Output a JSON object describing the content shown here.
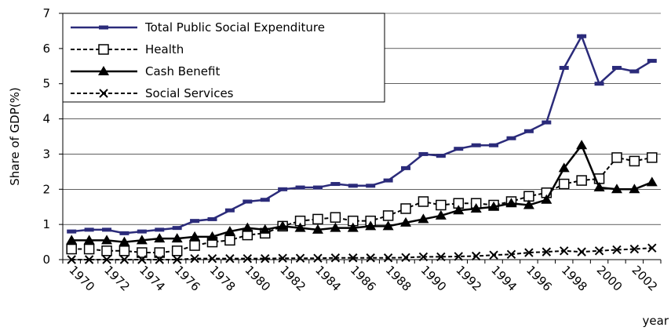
{
  "chart_data": {
    "type": "line",
    "ylabel": "Share of GDP(%)",
    "xlabel": "year",
    "categories": [
      "1970",
      null,
      "1972",
      null,
      "1974",
      null,
      "1976",
      null,
      "1978",
      null,
      "1980",
      null,
      "1982",
      null,
      "1984",
      null,
      "1986",
      null,
      "1988",
      null,
      "1990",
      null,
      "1992",
      null,
      "1994",
      null,
      "1996",
      null,
      "1998",
      null,
      "2000",
      null,
      "2002",
      null
    ],
    "ylim": [
      0,
      7
    ],
    "yticks": [
      0,
      1,
      2,
      3,
      4,
      5,
      6,
      7
    ],
    "grid": true,
    "legend": "upper left",
    "series": [
      {
        "name": "Total Public Social Expenditure",
        "color": "#2b2b7a",
        "dash": false,
        "marker": "dash",
        "values": [
          0.8,
          0.85,
          0.85,
          0.75,
          0.8,
          0.85,
          0.9,
          1.1,
          1.15,
          1.4,
          1.65,
          1.7,
          2.0,
          2.05,
          2.05,
          2.15,
          2.1,
          2.1,
          2.25,
          2.6,
          3.0,
          2.95,
          3.15,
          3.25,
          3.25,
          3.45,
          3.65,
          3.9,
          5.45,
          6.35,
          5.0,
          5.45,
          5.35,
          5.65
        ]
      },
      {
        "name": "Health",
        "color": "#000000",
        "dash": true,
        "marker": "square",
        "values": [
          0.3,
          0.3,
          0.25,
          0.25,
          0.2,
          0.2,
          0.25,
          0.4,
          0.5,
          0.55,
          0.7,
          0.75,
          0.95,
          1.1,
          1.15,
          1.2,
          1.1,
          1.1,
          1.25,
          1.45,
          1.65,
          1.55,
          1.6,
          1.6,
          1.55,
          1.65,
          1.8,
          1.9,
          2.15,
          2.25,
          2.3,
          2.9,
          2.8,
          2.9
        ]
      },
      {
        "name": "Cash Benefit",
        "color": "#000000",
        "dash": false,
        "marker": "triangle",
        "values": [
          0.55,
          0.55,
          0.55,
          0.5,
          0.55,
          0.6,
          0.6,
          0.65,
          0.65,
          0.8,
          0.9,
          0.85,
          0.95,
          0.9,
          0.85,
          0.9,
          0.9,
          0.95,
          0.95,
          1.05,
          1.15,
          1.25,
          1.4,
          1.45,
          1.5,
          1.6,
          1.55,
          1.7,
          2.6,
          3.25,
          2.05,
          2.0,
          2.0,
          2.2
        ]
      },
      {
        "name": "Social Services",
        "color": "#000000",
        "dash": true,
        "marker": "x",
        "values": [
          0,
          0,
          0,
          0,
          0,
          0,
          0,
          0.03,
          0.03,
          0.03,
          0.03,
          0.03,
          0.04,
          0.04,
          0.04,
          0.05,
          0.05,
          0.05,
          0.05,
          0.06,
          0.08,
          0.08,
          0.09,
          0.1,
          0.13,
          0.15,
          0.2,
          0.22,
          0.25,
          0.22,
          0.25,
          0.28,
          0.3,
          0.33
        ]
      }
    ]
  }
}
